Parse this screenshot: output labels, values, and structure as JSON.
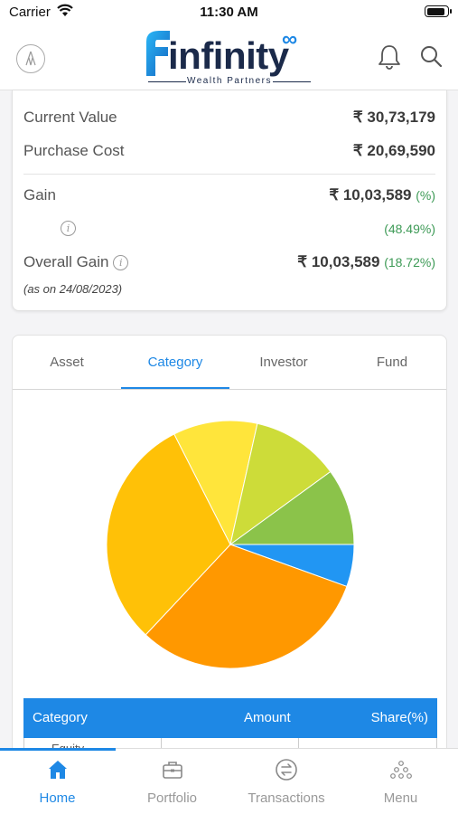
{
  "status_bar": {
    "carrier": "Carrier",
    "time": "11:30 AM"
  },
  "header": {
    "logo_word": "infinity",
    "logo_symbol": "∞",
    "logo_tagline": "Wealth Partners",
    "icons": [
      "profile-icon",
      "bell-icon",
      "search-icon"
    ]
  },
  "summary": {
    "current_value_label": "Current Value",
    "current_value": "₹ 30,73,179",
    "purchase_cost_label": "Purchase Cost",
    "purchase_cost": "₹ 20,69,590",
    "gain_label": "Gain",
    "gain_value": "₹ 10,03,589",
    "gain_pct": "(%)",
    "gain_pct_value": "(48.49%)",
    "info_symbol": "i",
    "overall_gain_label": "Overall Gain",
    "overall_gain_value": "₹ 10,03,589",
    "overall_gain_pct": "(18.72%)",
    "as_on": "(as on 24/08/2023)"
  },
  "tabs": [
    {
      "label": "Asset",
      "active": false
    },
    {
      "label": "Category",
      "active": true
    },
    {
      "label": "Investor",
      "active": false
    },
    {
      "label": "Fund",
      "active": false
    }
  ],
  "chart_data": {
    "type": "pie",
    "slices": [
      {
        "value": 5.5,
        "color": "#2196f3"
      },
      {
        "value": 31.5,
        "color": "#ff9800"
      },
      {
        "value": 30.5,
        "color": "#ffc107"
      },
      {
        "value": 11.0,
        "color": "#ffe53b"
      },
      {
        "value": 11.5,
        "color": "#cddc39"
      },
      {
        "value": 10.0,
        "color": "#8bc34a"
      }
    ],
    "start_angle_deg": 0,
    "direction": "clockwise"
  },
  "table": {
    "headers": [
      "Category",
      "Amount",
      "Share(%)"
    ],
    "first_row_partial": "Equity"
  },
  "bottom_nav": [
    {
      "label": "Home",
      "icon": "home-icon",
      "active": true
    },
    {
      "label": "Portfolio",
      "icon": "briefcase-icon",
      "active": false
    },
    {
      "label": "Transactions",
      "icon": "transfer-icon",
      "active": false
    },
    {
      "label": "Menu",
      "icon": "menu-dots-icon",
      "active": false
    }
  ],
  "colors": {
    "accent": "#1e88e5",
    "gain_green": "#3d9a56",
    "brand_navy": "#1b2a4a"
  }
}
